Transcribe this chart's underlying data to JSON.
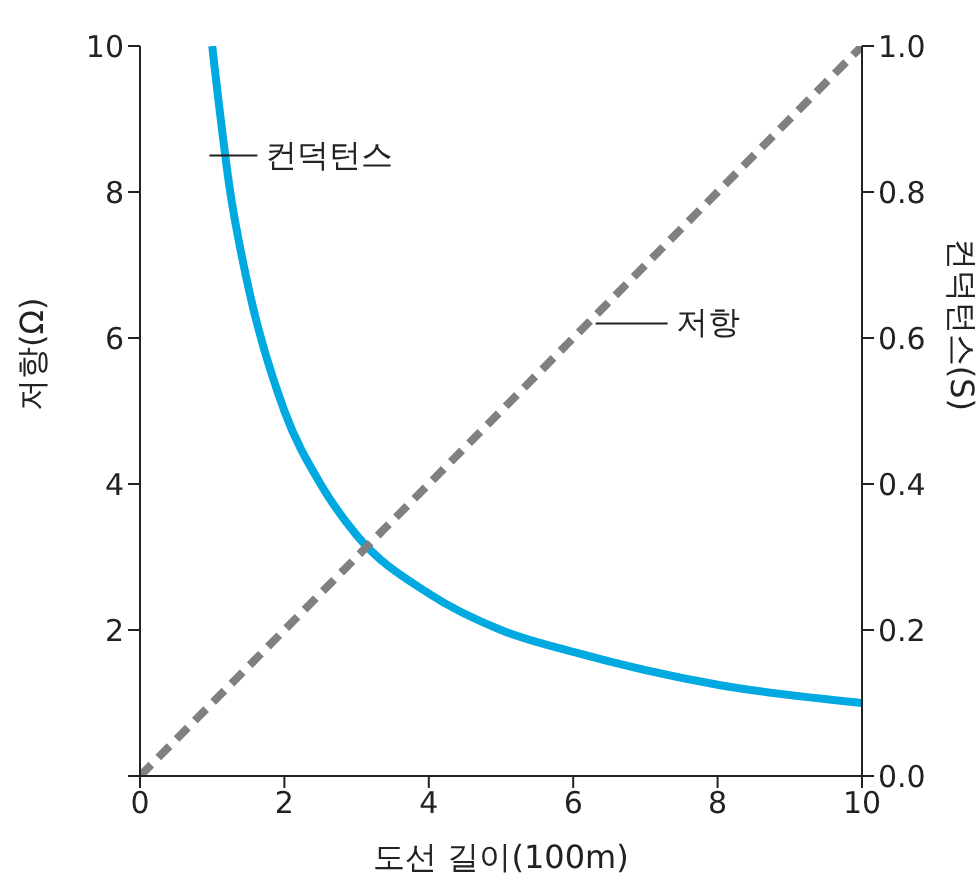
{
  "chart_data": {
    "type": "line",
    "xlabel": "도선 길이(100m)",
    "ylabel": "저항(Ω)",
    "y2label": "컨덕턴스(S)",
    "xlim": [
      0,
      10
    ],
    "xticks": [
      0,
      2,
      4,
      6,
      8,
      10
    ],
    "ylim": [
      0,
      10
    ],
    "yticks": [
      {
        "value": 0,
        "label": null
      },
      2,
      4,
      6,
      8,
      10
    ],
    "y2lim": [
      0,
      1
    ],
    "y2ticks": [
      {
        "value": 0,
        "label": "0.0"
      },
      0.2,
      0.4,
      0.6,
      0.8,
      {
        "value": 1,
        "label": "1.0"
      }
    ],
    "marker": "none",
    "series": [
      {
        "name": "컨덕턴스",
        "color": "#00a9e0",
        "axis": "y2",
        "line_style": "solid",
        "x": [
          1,
          1.25,
          1.5,
          2,
          2.5,
          3,
          4,
          5,
          6,
          8,
          10
        ],
        "values": [
          1,
          0.8,
          0.67,
          0.5,
          0.4,
          0.33,
          0.25,
          0.2,
          0.17,
          0.125,
          0.1
        ]
      },
      {
        "name": "저항",
        "color": "#808080",
        "line_style": "dashed",
        "x": [
          0,
          10
        ],
        "values": [
          0,
          10
        ]
      }
    ]
  }
}
